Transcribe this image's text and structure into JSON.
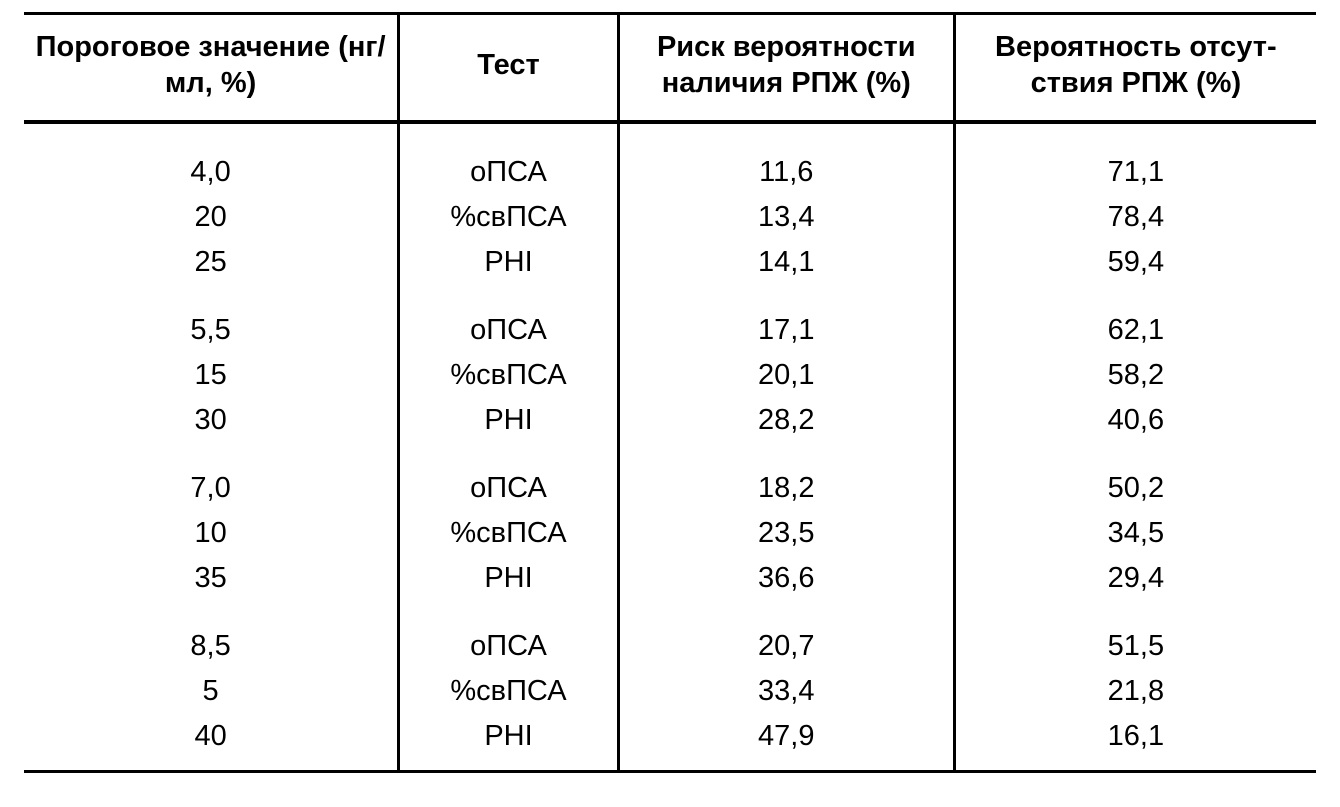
{
  "table": {
    "type": "table",
    "background_color": "#ffffff",
    "text_color": "#000000",
    "border_color": "#000000",
    "header_fontsize": 29,
    "header_fontweight": 700,
    "body_fontsize": 29,
    "body_fontweight": 400,
    "column_widths_pct": [
      29,
      17,
      26,
      28
    ],
    "columns": [
      "Пороговое значение (нг/мл, %)",
      "Тест",
      "Риск вероятности наличия РПЖ (%)",
      "Вероятность отсут­ствия РПЖ (%)"
    ],
    "groups": [
      {
        "rows": [
          {
            "threshold": "4,0",
            "test": "оПСА",
            "risk": "11,6",
            "absence": "71,1"
          },
          {
            "threshold": "20",
            "test": "%свПСА",
            "risk": "13,4",
            "absence": "78,4"
          },
          {
            "threshold": "25",
            "test": "PHI",
            "risk": "14,1",
            "absence": "59,4"
          }
        ]
      },
      {
        "rows": [
          {
            "threshold": "5,5",
            "test": "оПСА",
            "risk": "17,1",
            "absence": "62,1"
          },
          {
            "threshold": "15",
            "test": "%свПСА",
            "risk": "20,1",
            "absence": "58,2"
          },
          {
            "threshold": "30",
            "test": "PHI",
            "risk": "28,2",
            "absence": "40,6"
          }
        ]
      },
      {
        "rows": [
          {
            "threshold": "7,0",
            "test": "оПСА",
            "risk": "18,2",
            "absence": "50,2"
          },
          {
            "threshold": "10",
            "test": "%свПСА",
            "risk": "23,5",
            "absence": "34,5"
          },
          {
            "threshold": "35",
            "test": "PHI",
            "risk": "36,6",
            "absence": "29,4"
          }
        ]
      },
      {
        "rows": [
          {
            "threshold": "8,5",
            "test": "оПСА",
            "risk": "20,7",
            "absence": "51,5"
          },
          {
            "threshold": "5",
            "test": "%свПСА",
            "risk": "33,4",
            "absence": "21,8"
          },
          {
            "threshold": "40",
            "test": "PHI",
            "risk": "47,9",
            "absence": "16,1"
          }
        ]
      }
    ]
  }
}
